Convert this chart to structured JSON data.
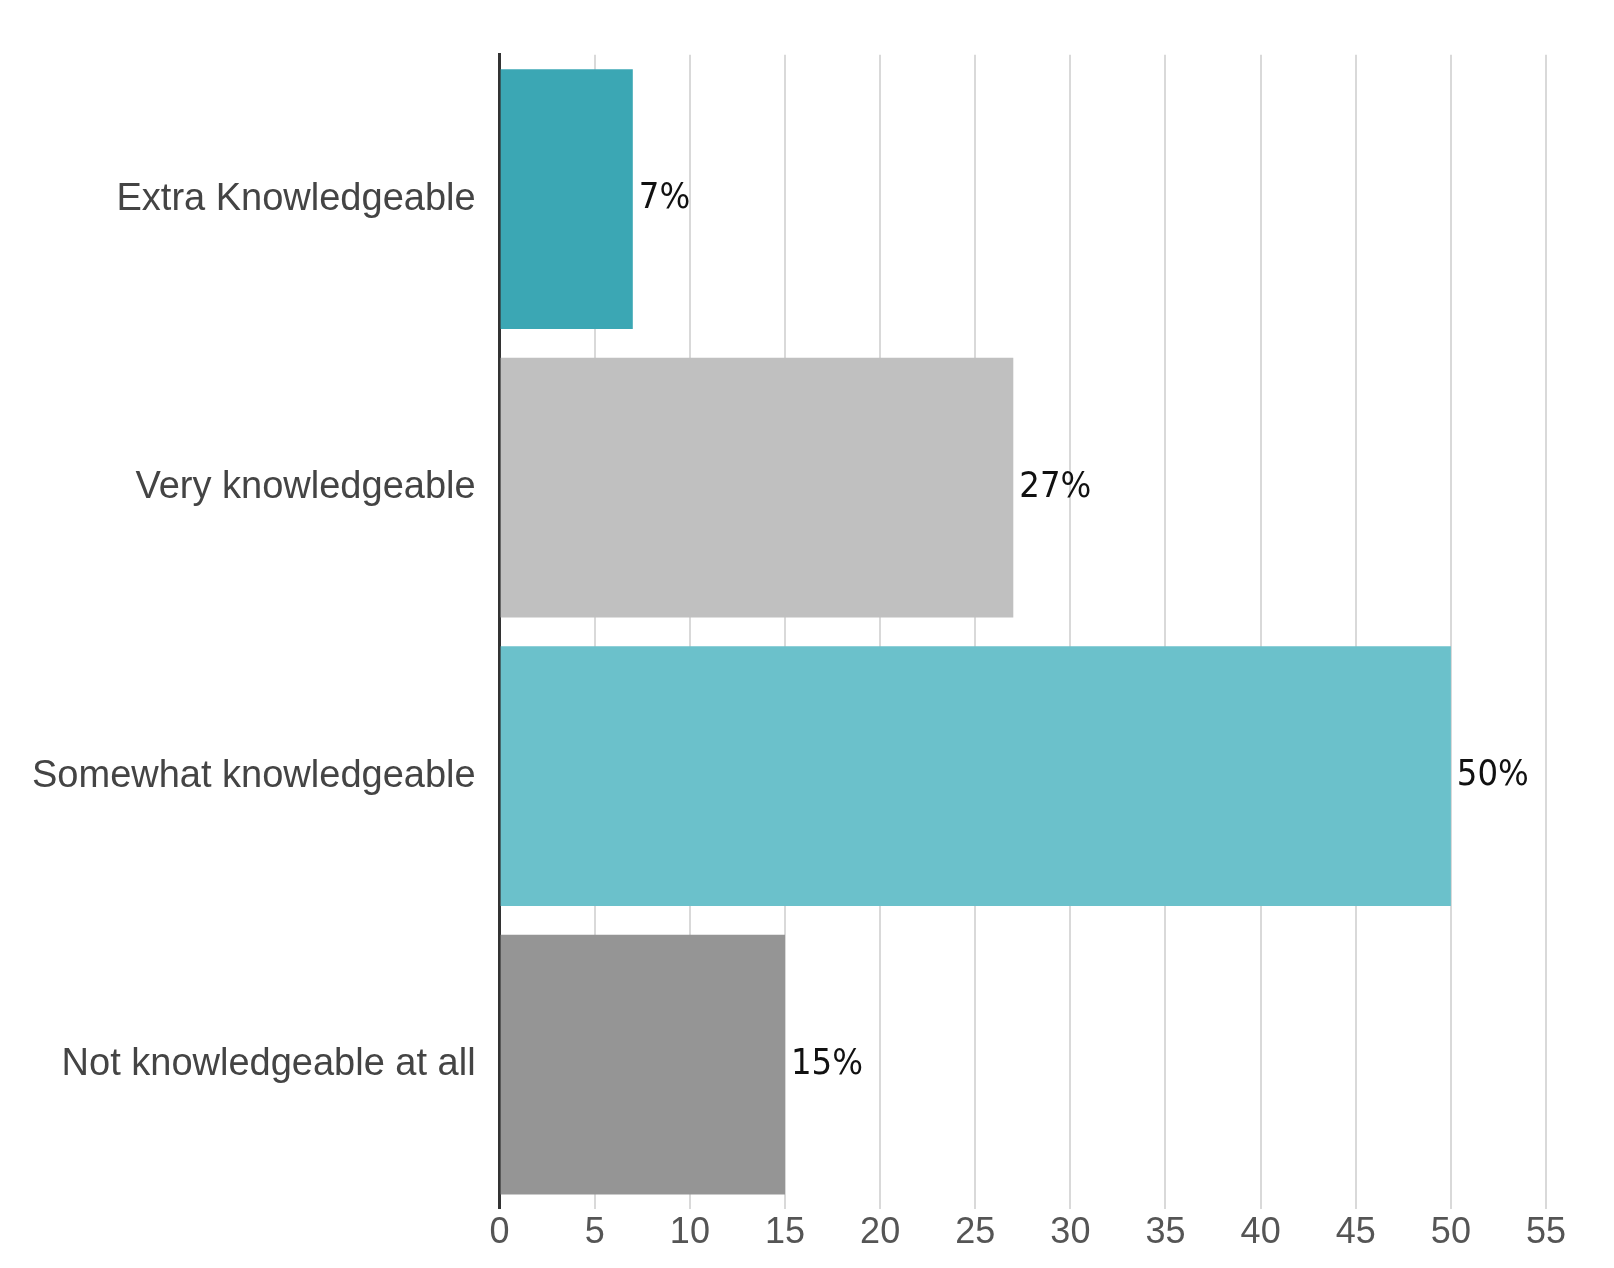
{
  "chart_data": {
    "type": "bar",
    "orientation": "horizontal",
    "categories": [
      "Extra Knowledgeable",
      "Very knowledgeable",
      "Somewhat knowledgeable",
      "Not knowledgeable at all"
    ],
    "values": [
      7,
      27,
      50,
      15
    ],
    "colors": [
      "#3ba7b4",
      "#c0c0c0",
      "#6bc1cb",
      "#959595"
    ],
    "value_labels": [
      "7%",
      "27%",
      "50%",
      "15%"
    ],
    "xlim": [
      0,
      55
    ],
    "xticks": [
      0,
      5,
      10,
      15,
      20,
      25,
      30,
      35,
      40,
      45,
      50,
      55
    ],
    "grid": "x",
    "legend": false
  }
}
